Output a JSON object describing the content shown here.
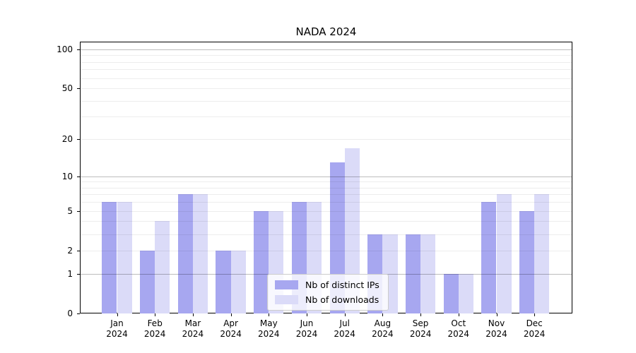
{
  "title": "NADA 2024",
  "chart_data": {
    "type": "bar",
    "title": "NADA 2024",
    "x_months": [
      "Jan",
      "Feb",
      "Mar",
      "Apr",
      "May",
      "Jun",
      "Jul",
      "Aug",
      "Sep",
      "Oct",
      "Nov",
      "Dec"
    ],
    "x_year": "2024",
    "series": [
      {
        "name": "Nb of distinct IPs",
        "color": "#a7a7f0",
        "values": [
          6,
          2,
          7,
          2,
          5,
          6,
          13,
          3,
          3,
          1,
          6,
          5
        ]
      },
      {
        "name": "Nb of downloads",
        "color": "#dbdbf8",
        "values": [
          6,
          4,
          7,
          2,
          5,
          6,
          17,
          3,
          3,
          1,
          7,
          7
        ]
      }
    ],
    "yticks": [
      0,
      1,
      2,
      5,
      10,
      20,
      50,
      100
    ],
    "major_gridlines": [
      1,
      10,
      100
    ],
    "minor_gridlines": [
      2,
      3,
      4,
      5,
      6,
      7,
      8,
      9,
      20,
      30,
      40,
      50,
      60,
      70,
      80,
      90
    ],
    "scale": "log1p",
    "ylim": [
      0,
      112
    ],
    "grid": true,
    "legend_position": "lower center"
  }
}
